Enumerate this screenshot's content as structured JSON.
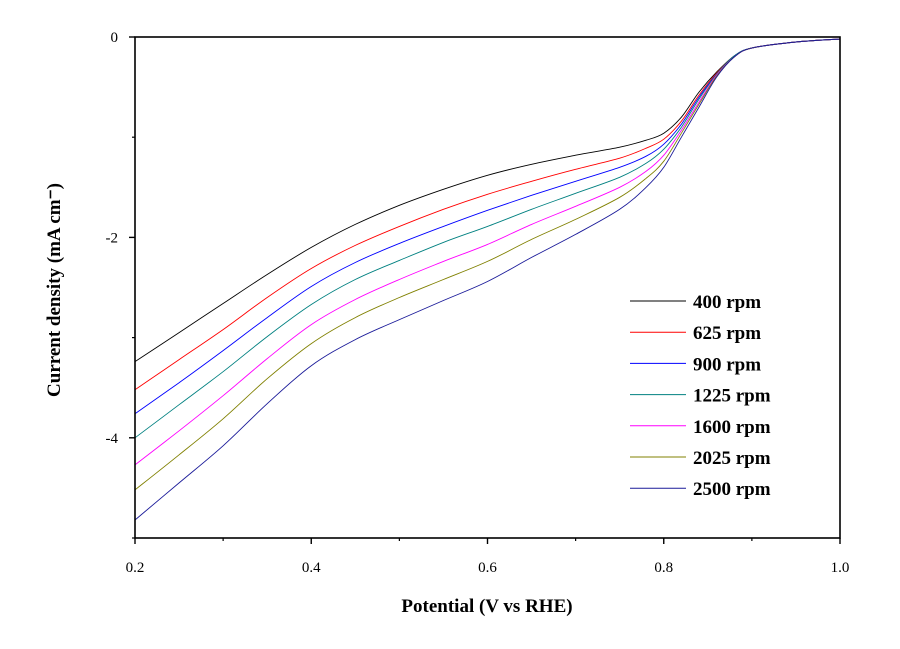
{
  "chart_data": {
    "type": "line",
    "title": "",
    "xlabel": "Potential (V vs RHE)",
    "ylabel": "Current density (mA cm⁻)",
    "xlim": [
      0.2,
      1.0
    ],
    "ylim": [
      -5,
      0
    ],
    "xticks": [
      "0.2",
      "0.4",
      "0.6",
      "0.8",
      "1.0"
    ],
    "xtick_values": [
      0.2,
      0.4,
      0.6,
      0.8,
      1.0
    ],
    "yticks": [
      "0",
      "-2",
      "-4"
    ],
    "ytick_values": [
      0,
      -2,
      -4
    ],
    "grid": false,
    "legend_position": "bottom-right",
    "x": [
      0.2,
      0.25,
      0.3,
      0.35,
      0.4,
      0.45,
      0.5,
      0.55,
      0.6,
      0.65,
      0.7,
      0.75,
      0.78,
      0.8,
      0.82,
      0.84,
      0.86,
      0.88,
      0.9,
      0.95,
      1.0
    ],
    "series": [
      {
        "name": "400 rpm",
        "color": "#000000",
        "values": [
          -3.24,
          -2.95,
          -2.66,
          -2.37,
          -2.1,
          -1.87,
          -1.68,
          -1.52,
          -1.38,
          -1.27,
          -1.18,
          -1.1,
          -1.03,
          -0.96,
          -0.8,
          -0.55,
          -0.35,
          -0.19,
          -0.11,
          -0.05,
          -0.02
        ]
      },
      {
        "name": "625 rpm",
        "color": "#ff0000",
        "values": [
          -3.52,
          -3.22,
          -2.92,
          -2.6,
          -2.31,
          -2.08,
          -1.89,
          -1.72,
          -1.57,
          -1.44,
          -1.32,
          -1.21,
          -1.11,
          -1.02,
          -0.84,
          -0.58,
          -0.36,
          -0.19,
          -0.11,
          -0.05,
          -0.02
        ]
      },
      {
        "name": "900 rpm",
        "color": "#0000ff",
        "values": [
          -3.76,
          -3.45,
          -3.13,
          -2.8,
          -2.49,
          -2.25,
          -2.06,
          -1.89,
          -1.73,
          -1.58,
          -1.44,
          -1.3,
          -1.19,
          -1.07,
          -0.87,
          -0.6,
          -0.37,
          -0.19,
          -0.11,
          -0.05,
          -0.02
        ]
      },
      {
        "name": "1225 rpm",
        "color": "#008080",
        "values": [
          -4.0,
          -3.67,
          -3.34,
          -2.99,
          -2.67,
          -2.42,
          -2.23,
          -2.05,
          -1.89,
          -1.72,
          -1.56,
          -1.4,
          -1.26,
          -1.12,
          -0.9,
          -0.62,
          -0.37,
          -0.19,
          -0.11,
          -0.05,
          -0.02
        ]
      },
      {
        "name": "1600 rpm",
        "color": "#ff00ff",
        "values": [
          -4.27,
          -3.93,
          -3.58,
          -3.21,
          -2.87,
          -2.62,
          -2.42,
          -2.24,
          -2.07,
          -1.87,
          -1.69,
          -1.5,
          -1.34,
          -1.18,
          -0.93,
          -0.65,
          -0.38,
          -0.2,
          -0.11,
          -0.05,
          -0.02
        ]
      },
      {
        "name": "2025 rpm",
        "color": "#808000",
        "values": [
          -4.52,
          -4.17,
          -3.81,
          -3.41,
          -3.06,
          -2.8,
          -2.6,
          -2.42,
          -2.24,
          -2.02,
          -1.82,
          -1.6,
          -1.41,
          -1.24,
          -0.96,
          -0.67,
          -0.39,
          -0.2,
          -0.11,
          -0.05,
          -0.02
        ]
      },
      {
        "name": "2500 rpm",
        "color": "#1a1a99",
        "values": [
          -4.82,
          -4.45,
          -4.08,
          -3.66,
          -3.28,
          -3.02,
          -2.82,
          -2.63,
          -2.44,
          -2.2,
          -1.97,
          -1.72,
          -1.5,
          -1.3,
          -1.0,
          -0.7,
          -0.4,
          -0.2,
          -0.11,
          -0.05,
          -0.02
        ]
      }
    ]
  }
}
